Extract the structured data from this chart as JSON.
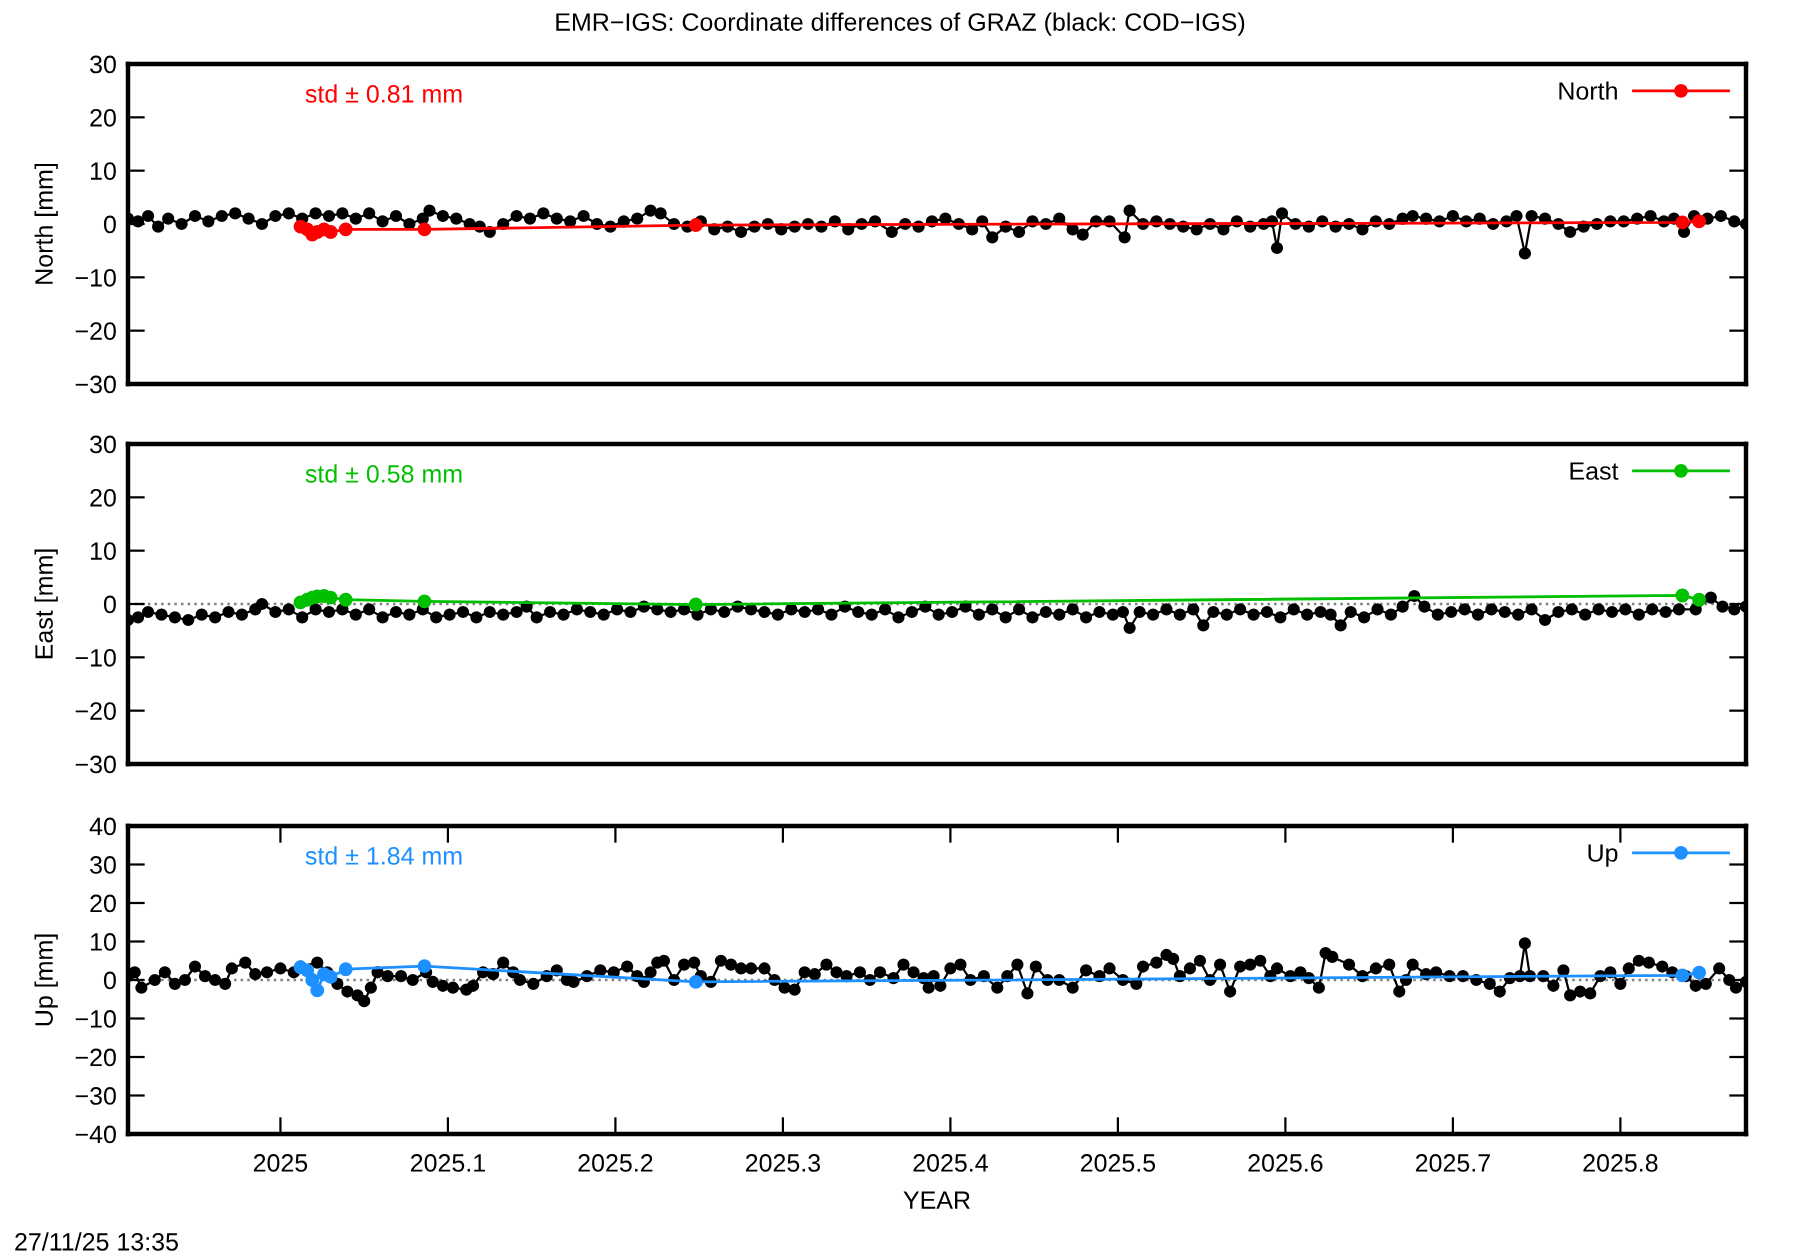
{
  "chart_data": [
    {
      "type": "line",
      "title": "EMR−IGS: Coordinate differences of GRAZ (black: COD−IGS)",
      "ylabel": "North [mm]",
      "annotations": [
        "std ± 0.81 mm"
      ],
      "xlim": [
        2024.909,
        2025.875
      ],
      "ylim": [
        -30,
        30
      ],
      "yticks": [
        {
          "value": -30,
          "label": "−30"
        },
        {
          "value": -20,
          "label": "−20"
        },
        {
          "value": -10,
          "label": "−10"
        },
        0,
        10,
        20,
        30
      ],
      "tick_labels": "y",
      "legend": "top right",
      "marker": "circle",
      "series": [
        {
          "color": "#000000",
          "x": [
            2024.909,
            2024.915,
            2024.921,
            2024.927,
            2024.933,
            2024.941,
            2024.949,
            2024.957,
            2024.965,
            2024.973,
            2024.981,
            2024.989,
            2024.997,
            2025.005,
            2025.013,
            2025.021,
            2025.029,
            2025.037,
            2025.045,
            2025.053,
            2025.061,
            2025.069,
            2025.077,
            2025.085,
            2025.089,
            2025.097,
            2025.105,
            2025.113,
            2025.119,
            2025.125,
            2025.133,
            2025.141,
            2025.149,
            2025.157,
            2025.165,
            2025.173,
            2025.181,
            2025.189,
            2025.197,
            2025.205,
            2025.213,
            2025.221,
            2025.227,
            2025.235,
            2025.243,
            2025.251,
            2025.259,
            2025.267,
            2025.275,
            2025.283,
            2025.291,
            2025.299,
            2025.307,
            2025.315,
            2025.323,
            2025.331,
            2025.339,
            2025.347,
            2025.355,
            2025.365,
            2025.373,
            2025.381,
            2025.389,
            2025.397,
            2025.405,
            2025.413,
            2025.419,
            2025.425,
            2025.433,
            2025.441,
            2025.449,
            2025.457,
            2025.465,
            2025.473,
            2025.479,
            2025.487,
            2025.495,
            2025.504,
            2025.507,
            2025.515,
            2025.523,
            2025.531,
            2025.539,
            2025.547,
            2025.555,
            2025.563,
            2025.571,
            2025.579,
            2025.587,
            2025.592,
            2025.595,
            2025.598,
            2025.606,
            2025.614,
            2025.622,
            2025.63,
            2025.638,
            2025.646,
            2025.654,
            2025.662,
            2025.67,
            2025.676,
            2025.684,
            2025.692,
            2025.7,
            2025.708,
            2025.716,
            2025.724,
            2025.732,
            2025.738,
            2025.743,
            2025.747,
            2025.755,
            2025.763,
            2025.77,
            2025.778,
            2025.786,
            2025.794,
            2025.802,
            2025.81,
            2025.818,
            2025.826,
            2025.832,
            2025.838,
            2025.844,
            2025.852,
            2025.86,
            2025.868,
            2025.875
          ],
          "values": [
            1,
            0.5,
            1.5,
            -0.5,
            1,
            0,
            1.5,
            0.5,
            1.5,
            2,
            1,
            0,
            1.5,
            2,
            1,
            2,
            1.5,
            2,
            1,
            2,
            0.5,
            1.5,
            0,
            1,
            2.5,
            1.5,
            1,
            0,
            -0.5,
            -1.5,
            0,
            1.5,
            1,
            2,
            1,
            0.5,
            1.5,
            0,
            -0.5,
            0.5,
            1,
            2.5,
            2,
            0,
            -0.5,
            0.5,
            -1,
            -0.5,
            -1.5,
            -0.5,
            0,
            -1,
            -0.5,
            0,
            -0.5,
            0.5,
            -1,
            0,
            0.5,
            -1.5,
            0,
            -0.5,
            0.5,
            1,
            0,
            -1,
            0.5,
            -2.5,
            -0.5,
            -1.5,
            0.5,
            0,
            1,
            -1,
            -2,
            0.5,
            0.5,
            -2.5,
            2.5,
            0,
            0.5,
            0,
            -0.5,
            -1,
            0,
            -1,
            0.5,
            -0.5,
            0,
            0.5,
            -4.5,
            2,
            0,
            -0.5,
            0.5,
            -0.5,
            0,
            -1,
            0.5,
            0,
            1,
            1.5,
            1,
            0.5,
            1.5,
            0.5,
            1,
            0,
            0.5,
            1.5,
            -5.5,
            1.5,
            1,
            0,
            -1.5,
            -0.5,
            0,
            0.5,
            0.5,
            1,
            1.5,
            0.5,
            1,
            -1.5,
            1.5,
            1,
            1.5,
            0.5,
            0
          ]
        },
        {
          "name": "North",
          "color": "#ff0000",
          "x": [
            2025.012,
            2025.016,
            2025.019,
            2025.022,
            2025.026,
            2025.03,
            2025.039,
            2025.086,
            2025.248,
            2025.837,
            2025.847
          ],
          "values": [
            -0.5,
            -1.0,
            -2.0,
            -1.5,
            -1.0,
            -1.5,
            -1.0,
            -1.0,
            -0.2,
            0.3,
            0.5
          ]
        }
      ]
    },
    {
      "type": "line",
      "ylabel": "East [mm]",
      "annotations": [
        "std ± 0.58 mm"
      ],
      "xlim": [
        2024.909,
        2025.875
      ],
      "ylim": [
        -30,
        30
      ],
      "yticks": [
        {
          "value": -30,
          "label": "−30"
        },
        {
          "value": -20,
          "label": "−20"
        },
        {
          "value": -10,
          "label": "−10"
        },
        0,
        10,
        20,
        30
      ],
      "tick_labels": "y",
      "legend": "top right",
      "marker": "circle",
      "ref_lines": [
        {
          "axis": "y",
          "value": 0,
          "line_style": "dotted",
          "color": "#808080"
        }
      ],
      "series": [
        {
          "color": "#000000",
          "x": [
            2024.909,
            2024.915,
            2024.921,
            2024.929,
            2024.937,
            2024.945,
            2024.953,
            2024.961,
            2024.969,
            2024.977,
            2024.985,
            2024.989,
            2024.997,
            2025.005,
            2025.013,
            2025.021,
            2025.029,
            2025.037,
            2025.045,
            2025.053,
            2025.061,
            2025.069,
            2025.077,
            2025.085,
            2025.093,
            2025.101,
            2025.109,
            2025.117,
            2025.125,
            2025.133,
            2025.141,
            2025.147,
            2025.153,
            2025.161,
            2025.169,
            2025.177,
            2025.185,
            2025.193,
            2025.201,
            2025.209,
            2025.217,
            2025.225,
            2025.233,
            2025.241,
            2025.249,
            2025.257,
            2025.265,
            2025.273,
            2025.281,
            2025.289,
            2025.297,
            2025.305,
            2025.313,
            2025.321,
            2025.329,
            2025.337,
            2025.345,
            2025.353,
            2025.361,
            2025.369,
            2025.377,
            2025.385,
            2025.393,
            2025.401,
            2025.409,
            2025.417,
            2025.425,
            2025.433,
            2025.441,
            2025.449,
            2025.457,
            2025.465,
            2025.473,
            2025.481,
            2025.489,
            2025.497,
            2025.503,
            2025.507,
            2025.513,
            2025.521,
            2025.529,
            2025.537,
            2025.545,
            2025.551,
            2025.557,
            2025.565,
            2025.573,
            2025.581,
            2025.589,
            2025.597,
            2025.605,
            2025.613,
            2025.621,
            2025.627,
            2025.633,
            2025.639,
            2025.647,
            2025.655,
            2025.663,
            2025.67,
            2025.677,
            2025.683,
            2025.691,
            2025.699,
            2025.707,
            2025.715,
            2025.723,
            2025.731,
            2025.739,
            2025.747,
            2025.755,
            2025.763,
            2025.771,
            2025.779,
            2025.787,
            2025.795,
            2025.803,
            2025.811,
            2025.819,
            2025.827,
            2025.835,
            2025.845,
            2025.854,
            2025.861,
            2025.868,
            2025.875
          ],
          "values": [
            -3,
            -2.5,
            -1.5,
            -2,
            -2.5,
            -3,
            -2,
            -2.5,
            -1.5,
            -2,
            -1,
            0,
            -1.5,
            -1,
            -2.5,
            -1,
            -1.5,
            -1,
            -2,
            -1,
            -2.5,
            -1.5,
            -2,
            -1,
            -2.5,
            -2,
            -1.5,
            -2.5,
            -1.5,
            -2,
            -1.5,
            -0.5,
            -2.5,
            -1.5,
            -2,
            -1,
            -1.5,
            -2,
            -1,
            -1.5,
            -0.5,
            -1,
            -1.5,
            -1,
            -2,
            -1,
            -1.5,
            -0.5,
            -1,
            -1.5,
            -2,
            -1,
            -1.5,
            -1,
            -2,
            -0.5,
            -1.5,
            -2,
            -1,
            -2.5,
            -1.5,
            -0.5,
            -2,
            -1.5,
            -0.5,
            -2,
            -1,
            -2.5,
            -1,
            -2.5,
            -1.5,
            -2,
            -1,
            -2.5,
            -1.5,
            -2,
            -1.5,
            -4.5,
            -1.5,
            -2,
            -1,
            -2,
            -1,
            -4,
            -1.5,
            -2,
            -1,
            -2,
            -1.5,
            -2.5,
            -1,
            -2,
            -1.5,
            -2,
            -4,
            -1.5,
            -2.5,
            -1,
            -2,
            -0.5,
            1.5,
            -0.5,
            -2,
            -1.5,
            -1,
            -2,
            -1,
            -1.5,
            -2,
            -1,
            -3,
            -1.5,
            -1,
            -2,
            -1,
            -1.5,
            -1,
            -2,
            -1,
            -1.5,
            -1,
            -1,
            1.2,
            -0.5,
            -1,
            -0.5
          ]
        },
        {
          "name": "East",
          "color": "#00c000",
          "x": [
            2025.012,
            2025.016,
            2025.019,
            2025.022,
            2025.026,
            2025.03,
            2025.039,
            2025.086,
            2025.248,
            2025.837,
            2025.847
          ],
          "values": [
            0.3,
            0.8,
            1.2,
            1.4,
            1.5,
            1.2,
            0.8,
            0.5,
            -0.1,
            1.6,
            0.8
          ]
        }
      ]
    },
    {
      "type": "line",
      "xlabel": "YEAR",
      "ylabel": "Up [mm]",
      "annotations": [
        "std ± 1.84 mm",
        "27/11/25 13:35"
      ],
      "xlim": [
        2024.909,
        2025.875
      ],
      "xticks": [
        2025,
        2025.1,
        2025.2,
        2025.3,
        2025.4,
        2025.5,
        2025.6,
        2025.7,
        2025.8
      ],
      "ylim": [
        -40,
        40
      ],
      "yticks": [
        {
          "value": -40,
          "label": "−40"
        },
        {
          "value": -30,
          "label": "−30"
        },
        {
          "value": -20,
          "label": "−20"
        },
        {
          "value": -10,
          "label": "−10"
        },
        0,
        10,
        20,
        30,
        40
      ],
      "legend": "top right",
      "marker": "circle",
      "ref_lines": [
        {
          "axis": "y",
          "value": 0,
          "line_style": "dotted",
          "color": "#808080"
        }
      ],
      "series": [
        {
          "color": "#000000",
          "x": [
            2024.909,
            2024.913,
            2024.917,
            2024.925,
            2024.931,
            2024.937,
            2024.943,
            2024.949,
            2024.955,
            2024.961,
            2024.967,
            2024.971,
            2024.979,
            2024.985,
            2024.992,
            2025.0,
            2025.008,
            2025.012,
            2025.022,
            2025.028,
            2025.034,
            2025.04,
            2025.046,
            2025.05,
            2025.054,
            2025.058,
            2025.064,
            2025.072,
            2025.079,
            2025.087,
            2025.091,
            2025.097,
            2025.103,
            2025.111,
            2025.115,
            2025.121,
            2025.127,
            2025.133,
            2025.139,
            2025.143,
            2025.151,
            2025.159,
            2025.165,
            2025.171,
            2025.175,
            2025.183,
            2025.191,
            2025.199,
            2025.207,
            2025.213,
            2025.217,
            2025.221,
            2025.225,
            2025.229,
            2025.235,
            2025.241,
            2025.247,
            2025.251,
            2025.257,
            2025.263,
            2025.269,
            2025.275,
            2025.281,
            2025.289,
            2025.295,
            2025.301,
            2025.307,
            2025.313,
            2025.319,
            2025.326,
            2025.332,
            2025.338,
            2025.346,
            2025.352,
            2025.358,
            2025.366,
            2025.372,
            2025.378,
            2025.384,
            2025.387,
            2025.39,
            2025.394,
            2025.4,
            2025.406,
            2025.412,
            2025.42,
            2025.428,
            2025.434,
            2025.44,
            2025.446,
            2025.451,
            2025.458,
            2025.465,
            2025.473,
            2025.481,
            2025.489,
            2025.495,
            2025.503,
            2025.511,
            2025.515,
            2025.523,
            2025.529,
            2025.533,
            2025.537,
            2025.543,
            2025.549,
            2025.555,
            2025.561,
            2025.567,
            2025.573,
            2025.579,
            2025.585,
            2025.591,
            2025.595,
            2025.603,
            2025.609,
            2025.614,
            2025.62,
            2025.624,
            2025.628,
            2025.638,
            2025.646,
            2025.654,
            2025.662,
            2025.668,
            2025.672,
            2025.676,
            2025.684,
            2025.69,
            2025.698,
            2025.706,
            2025.714,
            2025.722,
            2025.728,
            2025.734,
            2025.74,
            2025.743,
            2025.746,
            2025.754,
            2025.76,
            2025.766,
            2025.77,
            2025.776,
            2025.782,
            2025.788,
            2025.794,
            2025.8,
            2025.805,
            2025.811,
            2025.817,
            2025.825,
            2025.831,
            2025.839,
            2025.845,
            2025.851,
            2025.859,
            2025.865,
            2025.869,
            2025.875
          ],
          "values": [
            1,
            2,
            -2,
            0,
            2,
            -1,
            0,
            3.5,
            1,
            0,
            -1,
            3,
            4.5,
            1.5,
            2,
            3,
            2,
            3.5,
            4.5,
            2,
            -1,
            -3,
            -4,
            -5.5,
            -2,
            2,
            1,
            1,
            0,
            2,
            -0.5,
            -1.5,
            -2,
            -2.5,
            -1.5,
            2,
            1.5,
            4.5,
            2,
            0,
            -1,
            1,
            2.5,
            0,
            -0.5,
            1,
            2.5,
            2,
            3.5,
            1,
            -0.5,
            2,
            4.5,
            5,
            0,
            4,
            4.5,
            1,
            -0.5,
            5,
            4,
            3,
            3,
            3,
            0,
            -2,
            -2.5,
            2,
            1.5,
            4,
            2,
            1,
            2,
            0,
            2,
            0.5,
            4,
            2,
            0.5,
            -2,
            1,
            -1.5,
            3,
            4,
            0,
            1,
            -2,
            1,
            4,
            -3.5,
            3.5,
            0,
            0,
            -2,
            2.5,
            1,
            3,
            0,
            -1,
            3.5,
            4.5,
            6.5,
            5.5,
            1,
            3,
            5,
            0,
            4,
            -3,
            3.5,
            4,
            5,
            1,
            3,
            1,
            2,
            0.5,
            -2,
            7,
            6,
            4,
            1,
            3,
            4,
            -3,
            0,
            4,
            1.5,
            2,
            1,
            1,
            0,
            -1,
            -3,
            0.5,
            1,
            9.5,
            1,
            1,
            -1.5,
            2.5,
            -4,
            -3,
            -3.5,
            1,
            2,
            -1,
            3,
            5,
            4.5,
            3.5,
            2,
            1,
            -1.5,
            -1,
            3,
            0,
            -2,
            -0.5
          ]
        },
        {
          "name": "Up",
          "color": "#1e90ff",
          "x": [
            2025.012,
            2025.016,
            2025.019,
            2025.022,
            2025.026,
            2025.03,
            2025.039,
            2025.086,
            2025.248,
            2025.837,
            2025.847
          ],
          "values": [
            3.3,
            2.5,
            0.0,
            -2.7,
            1.5,
            0.8,
            2.8,
            3.6,
            -0.5,
            1.2,
            1.9
          ]
        }
      ]
    }
  ]
}
